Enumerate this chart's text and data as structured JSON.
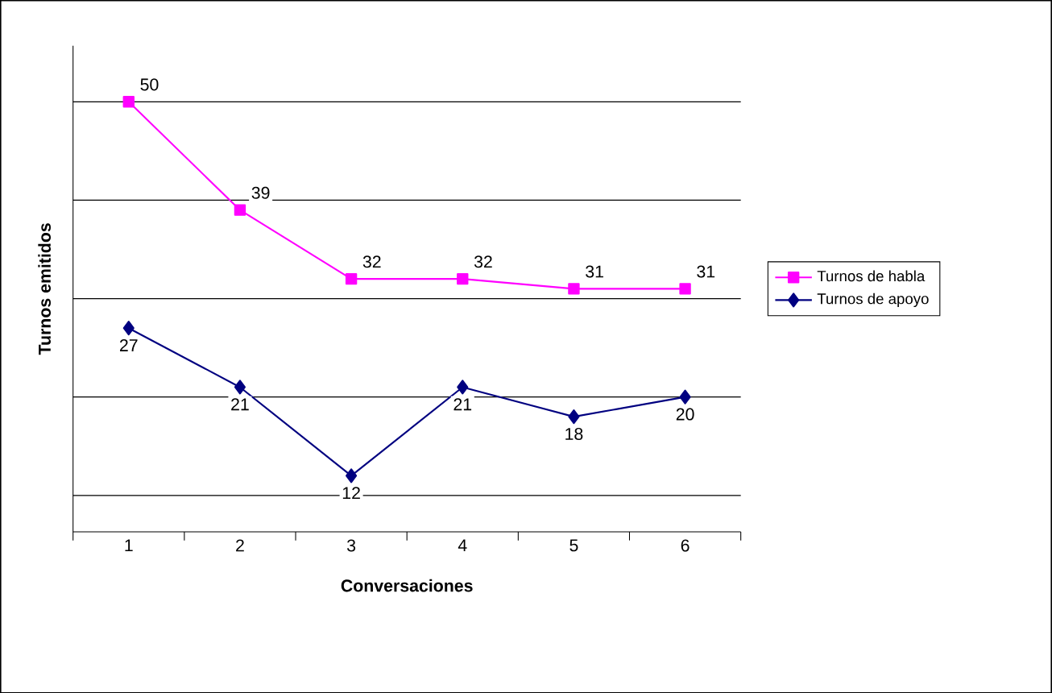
{
  "chart_data": {
    "type": "line",
    "xlabel": "Conversaciones",
    "ylabel": "Turnos emitidos",
    "categories": [
      "1",
      "2",
      "3",
      "4",
      "5",
      "6"
    ],
    "series": [
      {
        "name": "Turnos de habla",
        "color": "#ff00ff",
        "marker": "square",
        "values": [
          50,
          39,
          32,
          32,
          31,
          31
        ]
      },
      {
        "name": "Turnos de apoyo",
        "color": "#000080",
        "marker": "diamond",
        "values": [
          27,
          21,
          12,
          21,
          18,
          20
        ]
      }
    ],
    "data_labels": true,
    "grid": "y",
    "legend": "right",
    "tick_labels": "x"
  }
}
